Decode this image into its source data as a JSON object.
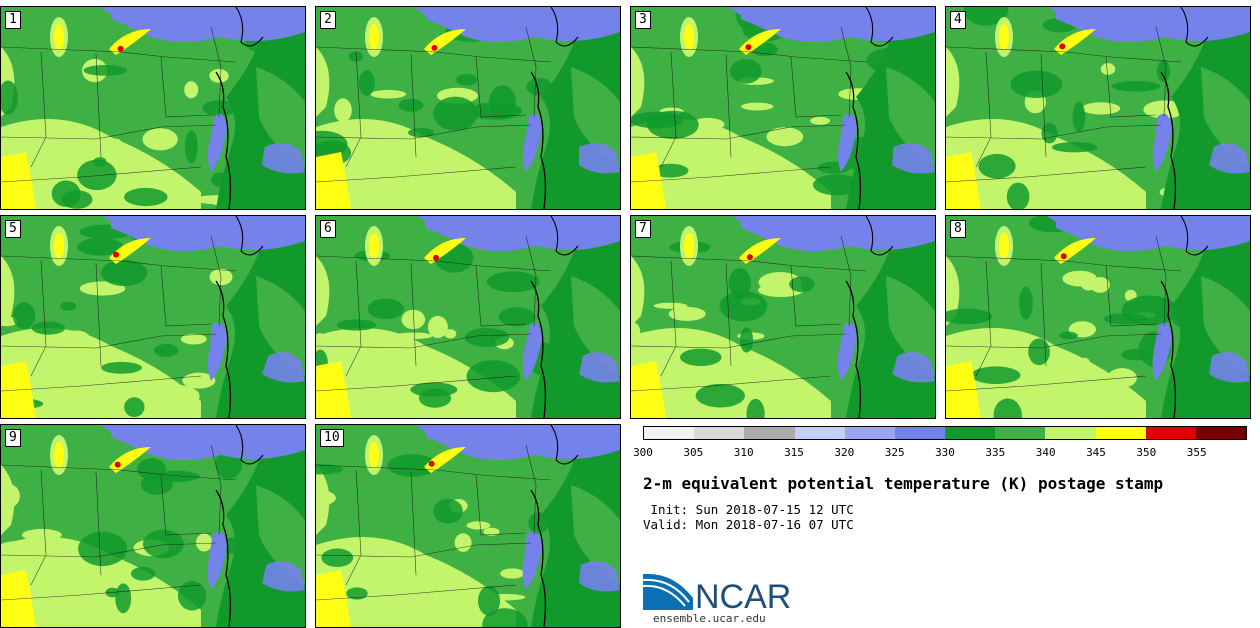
{
  "panels": [
    {
      "label": "1"
    },
    {
      "label": "2"
    },
    {
      "label": "3"
    },
    {
      "label": "4"
    },
    {
      "label": "5"
    },
    {
      "label": "6"
    },
    {
      "label": "7"
    },
    {
      "label": "8"
    },
    {
      "label": "9"
    },
    {
      "label": "10"
    }
  ],
  "colorbar": {
    "colors": [
      "#f2f2f2",
      "#d9d9d9",
      "#aaaaaa",
      "#c4cff8",
      "#9aa6f2",
      "#7482ea",
      "#119a2b",
      "#3fb043",
      "#c2f56c",
      "#ffff14",
      "#e00000",
      "#7a0000"
    ],
    "ticks": [
      "300",
      "305",
      "310",
      "315",
      "320",
      "325",
      "330",
      "335",
      "340",
      "345",
      "350",
      "355"
    ]
  },
  "title": "2-m equivalent potential temperature (K) postage stamp",
  "init_line": " Init: Sun 2018-07-15 12 UTC",
  "valid_line": "Valid: Mon 2018-07-16 07 UTC",
  "logo": {
    "text": "NCAR",
    "url": "ensemble.ucar.edu"
  }
}
